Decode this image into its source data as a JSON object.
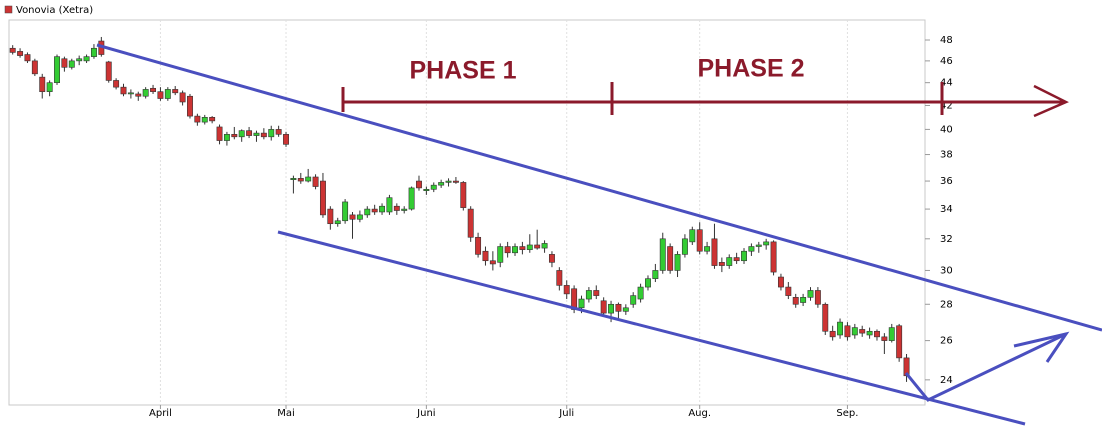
{
  "chart_data": {
    "type": "candlestick",
    "legend": "top-left",
    "log_scale": true,
    "grid": "x",
    "annotations": [
      "PHASE 1",
      "PHASE 2"
    ],
    "categories": [
      null,
      null,
      null,
      null,
      null,
      null,
      null,
      null,
      null,
      null,
      null,
      null,
      null,
      null,
      null,
      null,
      null,
      null,
      null,
      null,
      "April",
      null,
      null,
      null,
      null,
      null,
      null,
      null,
      null,
      null,
      null,
      null,
      null,
      null,
      null,
      null,
      null,
      "Mai",
      null,
      null,
      null,
      null,
      null,
      null,
      null,
      null,
      null,
      null,
      null,
      null,
      null,
      null,
      null,
      null,
      null,
      null,
      "Juni",
      null,
      null,
      null,
      null,
      null,
      null,
      null,
      null,
      null,
      null,
      null,
      null,
      null,
      null,
      null,
      null,
      null,
      null,
      "Juli",
      null,
      null,
      null,
      null,
      null,
      null,
      null,
      null,
      null,
      null,
      null,
      null,
      null,
      null,
      null,
      null,
      null,
      "Aug.",
      null,
      null,
      null,
      null,
      null,
      null,
      null,
      null,
      null,
      null,
      null,
      null,
      null,
      null,
      null,
      null,
      null,
      null,
      null,
      "Sep.",
      null,
      null,
      null,
      null,
      null,
      null,
      null,
      null,
      null,
      null
    ],
    "series": [
      {
        "name": "Vonovia (Xetra)",
        "color": "#cc3333",
        "up_color": "#33cc33",
        "down_color": "#cc3333",
        "open": [
          47.2,
          46.9,
          46.6,
          46.0,
          44.5,
          43.2,
          44.0,
          46.2,
          45.4,
          46.0,
          46.0,
          46.4,
          47.9,
          45.9,
          44.2,
          43.6,
          43.0,
          43.0,
          42.8,
          43.5,
          43.2,
          42.6,
          43.4,
          43.1,
          42.8,
          41.1,
          40.6,
          41.0,
          40.2,
          39.1,
          39.6,
          39.4,
          39.9,
          39.5,
          39.7,
          39.4,
          40.0,
          39.6,
          36.1,
          36.2,
          36.0,
          36.3,
          36.0,
          34.0,
          33.0,
          33.2,
          33.6,
          33.3,
          33.6,
          34.0,
          33.8,
          33.8,
          34.2,
          33.9,
          34.0,
          36.0,
          35.3,
          35.4,
          35.7,
          35.9,
          36.0,
          35.9,
          34.0,
          32.1,
          31.2,
          30.6,
          30.5,
          31.5,
          31.1,
          31.5,
          31.3,
          31.6,
          31.4,
          31.0,
          30.0,
          29.1,
          28.9,
          27.8,
          28.3,
          28.8,
          28.2,
          27.5,
          28.0,
          27.6,
          28.0,
          28.3,
          29.0,
          29.5,
          30.0,
          31.5,
          30.0,
          31.0,
          31.8,
          32.6,
          31.2,
          32.0,
          30.5,
          30.3,
          30.8,
          30.6,
          31.2,
          31.5,
          31.6,
          31.8,
          29.6,
          29.0,
          28.4,
          28.1,
          28.4,
          28.8,
          28.0,
          26.5,
          26.3,
          26.8,
          26.3,
          26.6,
          26.3,
          26.5,
          26.2,
          26.0,
          26.8,
          25.1,
          null,
          null
        ],
        "high": [
          47.5,
          47.2,
          46.8,
          46.2,
          44.8,
          44.2,
          46.6,
          46.4,
          46.2,
          46.5,
          46.6,
          47.6,
          48.3,
          46.0,
          44.4,
          43.9,
          43.4,
          43.2,
          43.6,
          43.8,
          43.6,
          43.6,
          43.7,
          43.3,
          43.0,
          41.3,
          41.2,
          41.1,
          40.4,
          39.8,
          40.2,
          40.0,
          40.2,
          39.9,
          40.1,
          40.3,
          40.3,
          39.8,
          36.4,
          36.6,
          36.9,
          36.5,
          36.6,
          34.2,
          33.4,
          34.7,
          33.8,
          33.9,
          34.2,
          34.3,
          34.4,
          35.0,
          34.4,
          34.2,
          35.6,
          36.4,
          35.6,
          35.9,
          36.1,
          36.2,
          36.3,
          36.0,
          34.2,
          32.4,
          31.5,
          31.2,
          31.7,
          31.8,
          31.7,
          31.8,
          32.3,
          32.6,
          31.9,
          31.2,
          30.2,
          29.4,
          29.1,
          28.5,
          29.0,
          29.1,
          28.4,
          28.2,
          28.1,
          28.0,
          28.7,
          29.2,
          29.7,
          30.4,
          32.4,
          31.7,
          31.2,
          32.3,
          32.8,
          33.1,
          31.8,
          33.0,
          30.8,
          31.0,
          31.1,
          31.4,
          31.7,
          31.8,
          32.0,
          31.9,
          29.8,
          29.3,
          28.6,
          28.6,
          29.0,
          29.0,
          28.1,
          26.8,
          27.2,
          27.0,
          26.9,
          26.8,
          26.7,
          26.6,
          26.4,
          26.9,
          26.9,
          25.3,
          null,
          null
        ],
        "low": [
          46.6,
          46.3,
          45.8,
          44.6,
          42.6,
          42.8,
          43.8,
          45.0,
          45.2,
          45.6,
          45.8,
          46.2,
          46.4,
          44.0,
          43.4,
          42.8,
          42.6,
          42.4,
          42.6,
          43.0,
          42.4,
          42.4,
          42.9,
          42.0,
          40.9,
          40.3,
          40.4,
          40.5,
          38.8,
          38.7,
          39.2,
          39.0,
          39.3,
          39.0,
          39.2,
          39.1,
          39.4,
          38.6,
          35.1,
          35.8,
          35.9,
          35.4,
          33.4,
          32.6,
          32.8,
          33.0,
          32.0,
          33.1,
          33.4,
          33.6,
          33.6,
          33.6,
          33.6,
          33.7,
          33.9,
          35.3,
          35.0,
          35.2,
          35.5,
          35.6,
          35.8,
          33.9,
          31.8,
          30.8,
          30.3,
          30.0,
          30.2,
          30.8,
          30.9,
          31.0,
          31.1,
          31.3,
          31.1,
          30.2,
          28.8,
          28.3,
          27.5,
          27.5,
          28.1,
          28.3,
          27.3,
          27.0,
          27.2,
          27.4,
          27.8,
          28.1,
          28.8,
          29.3,
          29.8,
          29.8,
          29.6,
          30.8,
          31.6,
          31.0,
          31.0,
          30.1,
          29.9,
          30.1,
          30.4,
          30.4,
          30.9,
          31.1,
          31.3,
          29.7,
          28.8,
          28.3,
          27.8,
          27.9,
          28.2,
          27.8,
          26.3,
          26.0,
          26.1,
          26.0,
          26.1,
          26.2,
          26.1,
          26.0,
          25.3,
          25.9,
          24.9,
          23.9,
          null,
          null
        ],
        "close": [
          46.8,
          46.5,
          46.0,
          44.8,
          43.2,
          44.0,
          46.4,
          45.4,
          46.0,
          46.2,
          46.4,
          47.2,
          46.6,
          44.2,
          43.6,
          43.0,
          43.1,
          42.8,
          43.4,
          43.2,
          42.6,
          43.4,
          43.1,
          42.3,
          41.1,
          40.6,
          41.0,
          40.7,
          39.1,
          39.6,
          39.4,
          39.9,
          39.5,
          39.7,
          39.4,
          40.0,
          39.6,
          38.8,
          36.2,
          36.0,
          36.3,
          35.6,
          33.6,
          33.0,
          33.2,
          34.5,
          33.3,
          33.6,
          34.0,
          33.8,
          34.2,
          34.8,
          33.9,
          34.0,
          35.5,
          35.5,
          35.4,
          35.7,
          35.9,
          36.0,
          35.9,
          34.1,
          32.1,
          31.0,
          30.6,
          30.4,
          31.5,
          31.1,
          31.5,
          31.3,
          31.6,
          31.4,
          31.7,
          30.5,
          29.1,
          28.6,
          27.7,
          28.3,
          28.8,
          28.5,
          27.5,
          28.0,
          27.6,
          27.8,
          28.5,
          29.0,
          29.5,
          30.0,
          32.0,
          30.0,
          31.0,
          32.0,
          32.6,
          31.2,
          31.5,
          30.3,
          30.3,
          30.8,
          30.6,
          31.2,
          31.5,
          31.6,
          31.8,
          29.9,
          29.0,
          28.5,
          28.0,
          28.4,
          28.8,
          28.0,
          26.5,
          26.2,
          27.0,
          26.2,
          26.7,
          26.4,
          26.5,
          26.2,
          26.0,
          26.7,
          25.1,
          24.2,
          null,
          null
        ]
      }
    ],
    "ylim": [
      22.8,
      50
    ],
    "yticks": [
      24,
      26,
      28,
      30,
      32,
      34,
      36,
      38,
      40,
      42,
      44,
      46,
      48
    ]
  }
}
